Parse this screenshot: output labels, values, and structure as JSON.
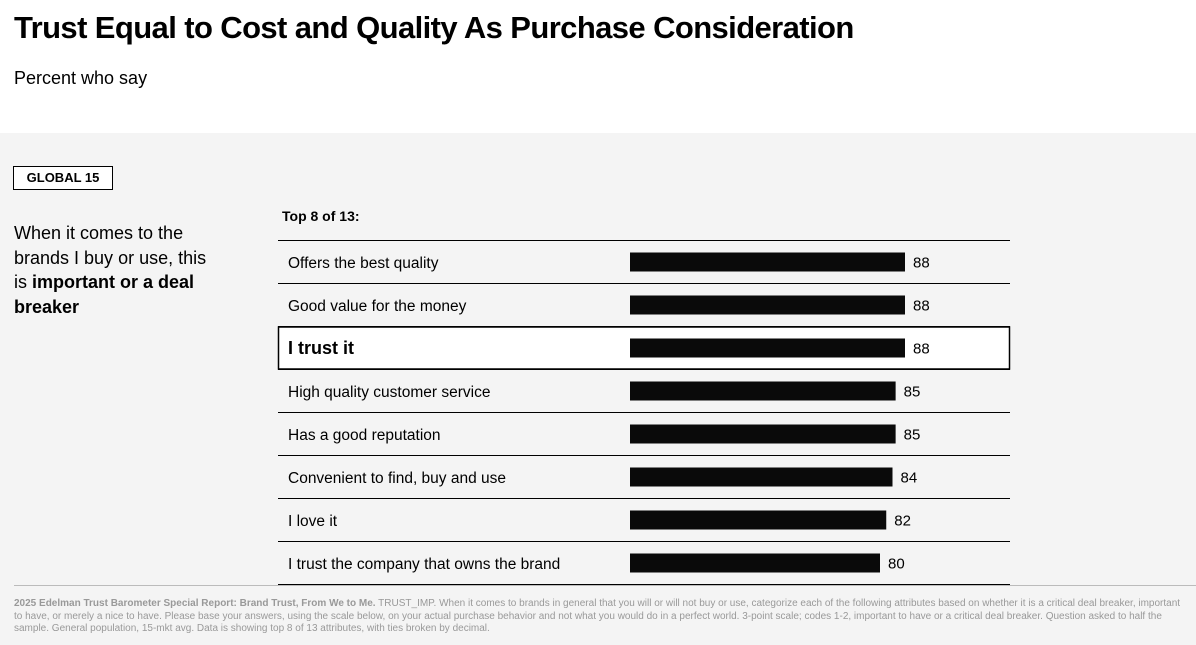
{
  "title": "Trust Equal to Cost and Quality As Purchase Consideration",
  "subtitle": "Percent who say",
  "badge": "GLOBAL 15",
  "question": {
    "part1": "When it comes to the brands I buy or use, this is ",
    "bold": "important or a deal breaker"
  },
  "chart_heading": "Top 8 of 13:",
  "chart_data": {
    "type": "bar",
    "orientation": "horizontal",
    "categories": [
      "Offers the best quality",
      "Good value for the money",
      "I trust it",
      "High quality customer service",
      "Has a good reputation",
      "Convenient to find, buy and use",
      "I love it",
      "I trust the company that owns the brand"
    ],
    "values": [
      88,
      88,
      88,
      85,
      85,
      84,
      82,
      80
    ],
    "highlight": "I trust it",
    "xlim": [
      0,
      100
    ],
    "bar_color": "#0a0a0a"
  },
  "footer": {
    "source": "2025 Edelman Trust Barometer Special Report: Brand Trust, From We to Me.",
    "note": " TRUST_IMP. When it comes to brands in general that you will or will not buy or use, categorize each of the following attributes based on whether it is a critical deal breaker, important to have, or merely a nice to have. Please base your answers, using the scale below, on your actual purchase behavior and not what you would do in a perfect world. 3-point scale; codes 1-2, important  to have or a critical deal breaker. Question asked to half the sample. General population, 15-mkt avg. Data is showing top 8 of 13 attributes, with ties broken by decimal."
  }
}
